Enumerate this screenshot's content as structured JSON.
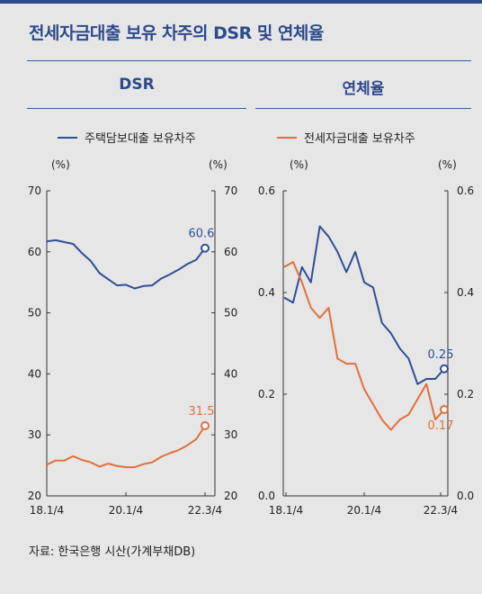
{
  "title": "전세자금대출 보유 차주의 DSR 및 연체율",
  "source": "자료: 한국은행 시산(가계부채DB)",
  "colors": {
    "accent": "#2c4a8c",
    "series1": "#2e4f96",
    "series2": "#e0703a",
    "background": "#e6e6e6",
    "rule": "#3a5a9c"
  },
  "legend": {
    "series1": "주택담보대출 보유차주",
    "series2": "전세자금대출 보유차주"
  },
  "chart_data": [
    {
      "type": "line",
      "title": "DSR",
      "unit_left": "(%)",
      "unit_right": "(%)",
      "ylim": [
        20,
        70
      ],
      "yticks": [
        20,
        30,
        40,
        50,
        60,
        70
      ],
      "xticks": [
        "18.1/4",
        "20.1/4",
        "22.3/4"
      ],
      "series": [
        {
          "name": "주택담보대출 보유차주",
          "values": [
            61.7,
            61.9,
            61.6,
            61.3,
            59.8,
            58.5,
            56.5,
            55.5,
            54.5,
            54.6,
            54.0,
            54.4,
            54.5,
            55.6,
            56.3,
            57.1,
            58.0,
            58.7,
            60.6
          ],
          "end_label": "60.6"
        },
        {
          "name": "전세자금대출 보유차주",
          "values": [
            25.1,
            25.8,
            25.8,
            26.5,
            25.9,
            25.5,
            24.8,
            25.3,
            24.9,
            24.7,
            24.7,
            25.2,
            25.5,
            26.4,
            27.0,
            27.5,
            28.3,
            29.3,
            31.5
          ],
          "end_label": "31.5"
        }
      ]
    },
    {
      "type": "line",
      "title": "연체율",
      "unit_left": "(%)",
      "unit_right": "(%)",
      "ylim": [
        0.0,
        0.6
      ],
      "yticks": [
        "0.0",
        "0.2",
        "0.4",
        "0.6"
      ],
      "xticks": [
        "18.1/4",
        "20.1/4",
        "22.3/4"
      ],
      "series": [
        {
          "name": "주택담보대출 보유차주",
          "values": [
            0.39,
            0.38,
            0.45,
            0.42,
            0.53,
            0.51,
            0.48,
            0.44,
            0.48,
            0.42,
            0.41,
            0.34,
            0.32,
            0.29,
            0.27,
            0.22,
            0.23,
            0.23,
            0.25
          ],
          "end_label": "0.25"
        },
        {
          "name": "전세자금대출 보유차주",
          "values": [
            0.45,
            0.46,
            0.42,
            0.37,
            0.35,
            0.37,
            0.27,
            0.26,
            0.26,
            0.21,
            0.18,
            0.15,
            0.13,
            0.15,
            0.16,
            0.19,
            0.22,
            0.15,
            0.17
          ],
          "end_label": "0.17"
        }
      ]
    }
  ]
}
